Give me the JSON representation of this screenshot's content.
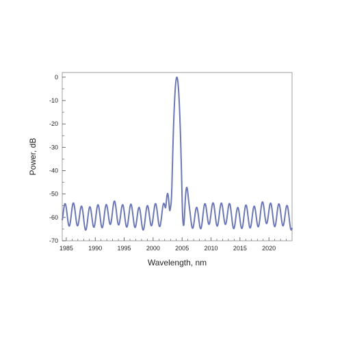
{
  "chart_data": {
    "type": "line",
    "title": "",
    "xlabel": "Wavelength, nm",
    "ylabel": "Power, dB",
    "xlim": [
      1984.3,
      2024
    ],
    "ylim": [
      -70,
      2
    ],
    "grid": false,
    "xticks": [
      1985,
      1990,
      1995,
      2000,
      2005,
      2010,
      2015,
      2020
    ],
    "yticks": [
      0,
      -10,
      -20,
      -30,
      -40,
      -50,
      -60,
      -70
    ],
    "line_color": "#6b77b5",
    "main_peak": {
      "wavelength": 2004.1,
      "power": 0
    },
    "side_peaks": [
      {
        "wavelength": 2002.5,
        "power": -50
      },
      {
        "wavelength": 2005.8,
        "power": -47.5
      }
    ],
    "background_ripple": {
      "period_nm": 1.42,
      "first_peak_nm": 1984.8,
      "peak_power": -54.5,
      "trough_power": -64
    }
  }
}
